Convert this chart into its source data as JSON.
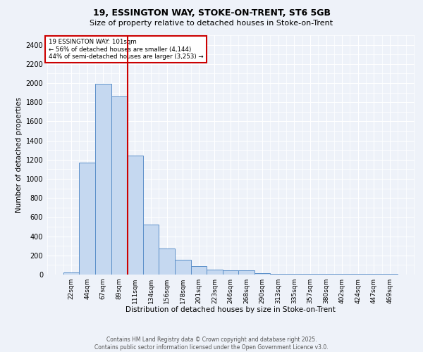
{
  "title1": "19, ESSINGTON WAY, STOKE-ON-TRENT, ST6 5GB",
  "title2": "Size of property relative to detached houses in Stoke-on-Trent",
  "xlabel": "Distribution of detached houses by size in Stoke-on-Trent",
  "ylabel": "Number of detached properties",
  "bar_labels": [
    "22sqm",
    "44sqm",
    "67sqm",
    "89sqm",
    "111sqm",
    "134sqm",
    "156sqm",
    "178sqm",
    "201sqm",
    "223sqm",
    "246sqm",
    "268sqm",
    "290sqm",
    "313sqm",
    "335sqm",
    "357sqm",
    "380sqm",
    "402sqm",
    "424sqm",
    "447sqm",
    "469sqm"
  ],
  "bar_values": [
    25,
    1170,
    1990,
    1860,
    1240,
    520,
    270,
    155,
    90,
    55,
    45,
    45,
    12,
    5,
    5,
    5,
    5,
    5,
    5,
    5,
    5
  ],
  "bar_color": "#c5d8f0",
  "bar_edge_color": "#5b8fc9",
  "vline_x": 3.55,
  "vline_color": "#cc0000",
  "annotation_text": "19 ESSINGTON WAY: 101sqm\n← 56% of detached houses are smaller (4,144)\n44% of semi-detached houses are larger (3,253) →",
  "annotation_box_color": "#ffffff",
  "annotation_box_edge": "#cc0000",
  "ylim": [
    0,
    2500
  ],
  "yticks": [
    0,
    200,
    400,
    600,
    800,
    1000,
    1200,
    1400,
    1600,
    1800,
    2000,
    2200,
    2400
  ],
  "bg_color": "#eef2f9",
  "grid_color": "#ffffff",
  "footer1": "Contains HM Land Registry data © Crown copyright and database right 2025.",
  "footer2": "Contains public sector information licensed under the Open Government Licence v3.0."
}
